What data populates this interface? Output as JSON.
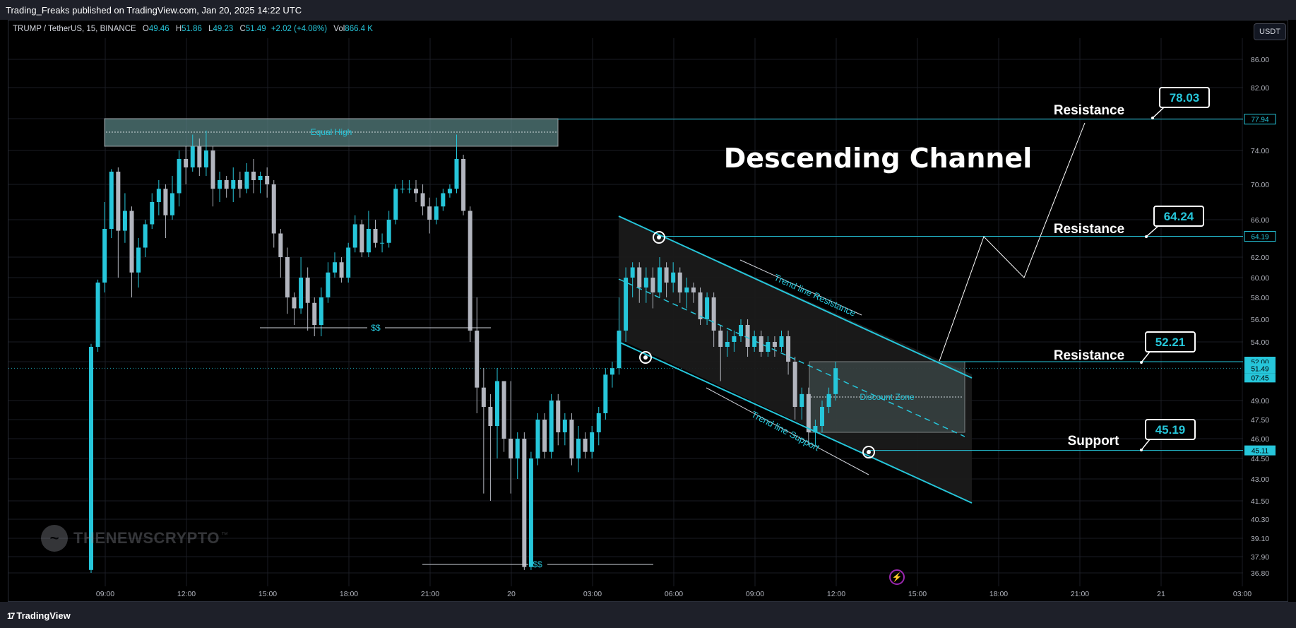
{
  "header": {
    "published": "Trading_Freaks published on TradingView.com, Jan 20, 2025 14:22 UTC"
  },
  "legend": {
    "symbol": "TRUMP / TetherUS, 15, BINANCE",
    "open_label": "O",
    "open": "49.46",
    "high_label": "H",
    "high": "51.86",
    "low_label": "L",
    "low": "49.23",
    "close_label": "C",
    "close": "51.49",
    "change": "+2.02 (+4.08%)",
    "vol_label": "Vol",
    "vol": "866.4 K"
  },
  "currency_button": "USDT",
  "footer": {
    "brand": "TradingView"
  },
  "watermark": {
    "text": "THENEWSCRYPTO",
    "tm": "™"
  },
  "colors": {
    "bull": "#26c6da",
    "bear": "#b2b5be",
    "line": "#26c6da",
    "grid": "#1a1d24"
  },
  "chart_data": {
    "type": "candlestick",
    "title": "Descending Channel",
    "ylim": [
      36.0,
      88.0
    ],
    "y_ticks": [
      "86.00",
      "82.00",
      "78.00",
      "74.00",
      "70.00",
      "66.00",
      "62.00",
      "60.00",
      "58.00",
      "56.00",
      "54.00",
      "52.00",
      "49.00",
      "47.50",
      "46.00",
      "44.50",
      "43.00",
      "41.50",
      "40.30",
      "39.10",
      "37.90",
      "36.80"
    ],
    "x_ticks": [
      "09:00",
      "12:00",
      "15:00",
      "18:00",
      "21:00",
      "20",
      "03:00",
      "06:00",
      "09:00",
      "12:00",
      "15:00",
      "18:00",
      "21:00",
      "21",
      "03:00"
    ],
    "price_labels": [
      {
        "value": 77.94,
        "text": "77.94",
        "style": "outline"
      },
      {
        "value": 64.19,
        "text": "64.19",
        "style": "outline"
      },
      {
        "value": 52.0,
        "text": "52.00",
        "style": "fill"
      },
      {
        "value": 51.49,
        "text": "51.49",
        "style": "fill"
      },
      {
        "value": 45.11,
        "text": "45.11",
        "style": "fill"
      }
    ],
    "countdown": "07:45",
    "levels": [
      {
        "label": "Resistance",
        "callout": "78.03",
        "value": 77.94
      },
      {
        "label": "Resistance",
        "callout": "64.24",
        "value": 64.19
      },
      {
        "label": "Resistance",
        "callout": "52.21",
        "value": 52.0
      },
      {
        "label": "Support",
        "callout": "45.19",
        "value": 45.11
      }
    ],
    "annotations": {
      "equal_high": "Equal High",
      "liquidity_1": "$$",
      "liquidity_2": "$$",
      "trend_resistance": "Trend line Resistance",
      "trend_support": "Trend line Support",
      "discount_zone": "Discount Zone"
    },
    "candles": [
      [
        37.0,
        53.5,
        36.8,
        53.8
      ],
      [
        53.5,
        59.5,
        53.0,
        59.8
      ],
      [
        59.5,
        65.0,
        58.5,
        68.0
      ],
      [
        65.0,
        71.5,
        64.0,
        71.8
      ],
      [
        71.5,
        64.8,
        60.0,
        72.0
      ],
      [
        64.8,
        67.0,
        63.5,
        69.0
      ],
      [
        67.0,
        60.5,
        58.0,
        67.5
      ],
      [
        60.5,
        63.0,
        59.0,
        64.0
      ],
      [
        63.0,
        65.5,
        62.0,
        66.0
      ],
      [
        65.5,
        68.0,
        65.0,
        69.0
      ],
      [
        68.0,
        69.5,
        66.5,
        70.5
      ],
      [
        69.5,
        66.5,
        64.0,
        70.0
      ],
      [
        66.5,
        69.0,
        66.0,
        71.0
      ],
      [
        69.0,
        73.0,
        67.5,
        74.0
      ],
      [
        73.0,
        72.0,
        70.0,
        74.5
      ],
      [
        72.0,
        74.5,
        71.5,
        76.0
      ],
      [
        74.5,
        72.0,
        71.0,
        75.5
      ],
      [
        72.0,
        74.0,
        71.0,
        76.5
      ],
      [
        74.0,
        69.5,
        67.5,
        74.5
      ],
      [
        69.5,
        70.5,
        68.0,
        71.5
      ],
      [
        70.5,
        69.5,
        68.5,
        71.0
      ],
      [
        69.5,
        70.5,
        68.0,
        72.0
      ],
      [
        70.5,
        69.5,
        68.5,
        71.5
      ],
      [
        69.5,
        71.5,
        69.0,
        72.5
      ],
      [
        71.5,
        70.5,
        69.0,
        73.0
      ],
      [
        70.5,
        71.0,
        69.0,
        71.5
      ],
      [
        71.0,
        70.0,
        68.5,
        72.0
      ],
      [
        70.0,
        64.5,
        63.0,
        70.5
      ],
      [
        64.5,
        62.0,
        60.0,
        65.0
      ],
      [
        62.0,
        58.0,
        56.5,
        63.0
      ],
      [
        58.0,
        57.0,
        55.5,
        58.5
      ],
      [
        57.0,
        60.0,
        56.5,
        62.0
      ],
      [
        60.0,
        57.5,
        55.0,
        61.0
      ],
      [
        57.5,
        55.5,
        54.5,
        58.0
      ],
      [
        55.5,
        58.0,
        54.5,
        59.0
      ],
      [
        58.0,
        60.5,
        57.5,
        61.5
      ],
      [
        60.5,
        61.5,
        60.0,
        62.5
      ],
      [
        61.5,
        60.0,
        59.5,
        62.0
      ],
      [
        60.0,
        63.0,
        59.5,
        63.5
      ],
      [
        63.0,
        65.5,
        62.5,
        66.5
      ],
      [
        65.5,
        62.5,
        62.0,
        66.0
      ],
      [
        62.5,
        65.0,
        62.0,
        67.0
      ],
      [
        65.0,
        63.5,
        63.0,
        66.0
      ],
      [
        63.5,
        63.5,
        62.5,
        64.5
      ],
      [
        63.5,
        66.0,
        63.0,
        67.0
      ],
      [
        66.0,
        69.5,
        65.5,
        70.0
      ],
      [
        69.5,
        69.5,
        69.0,
        70.5
      ],
      [
        69.5,
        69.5,
        69.0,
        70.5
      ],
      [
        69.5,
        69.0,
        68.0,
        70.5
      ],
      [
        69.0,
        67.5,
        66.5,
        70.0
      ],
      [
        67.5,
        66.0,
        64.5,
        68.5
      ],
      [
        66.0,
        67.5,
        65.5,
        68.5
      ],
      [
        67.5,
        69.0,
        67.0,
        69.5
      ],
      [
        69.0,
        69.5,
        68.5,
        70.0
      ],
      [
        69.5,
        73.0,
        69.0,
        76.0
      ],
      [
        73.0,
        67.0,
        66.5,
        73.5
      ],
      [
        67.0,
        55.0,
        54.0,
        67.5
      ],
      [
        55.0,
        50.0,
        48.0,
        58.0
      ],
      [
        50.0,
        48.5,
        42.0,
        51.5
      ],
      [
        48.5,
        47.0,
        41.5,
        49.5
      ],
      [
        47.0,
        50.5,
        44.5,
        51.5
      ],
      [
        50.5,
        46.0,
        45.0,
        50.5
      ],
      [
        46.0,
        44.5,
        42.0,
        50.5
      ],
      [
        44.5,
        46.0,
        43.0,
        46.5
      ],
      [
        46.0,
        37.2,
        37.0,
        46.5
      ],
      [
        37.2,
        44.5,
        37.0,
        45.0
      ],
      [
        44.5,
        47.5,
        44.0,
        48.0
      ],
      [
        47.5,
        45.0,
        44.5,
        48.0
      ],
      [
        45.0,
        49.0,
        44.5,
        49.5
      ],
      [
        49.0,
        46.5,
        45.5,
        49.5
      ],
      [
        46.5,
        47.5,
        45.5,
        48.0
      ],
      [
        47.5,
        44.5,
        44.0,
        48.0
      ],
      [
        44.5,
        46.0,
        43.5,
        47.0
      ],
      [
        46.0,
        45.0,
        44.5,
        46.5
      ],
      [
        45.0,
        46.5,
        44.5,
        47.0
      ],
      [
        46.5,
        48.0,
        45.5,
        48.5
      ],
      [
        48.0,
        51.0,
        47.5,
        51.5
      ],
      [
        51.0,
        51.5,
        50.0,
        52.0
      ],
      [
        51.5,
        55.0,
        51.0,
        58.0
      ],
      [
        55.0,
        60.0,
        54.0,
        61.0
      ],
      [
        60.0,
        61.0,
        58.0,
        61.5
      ],
      [
        61.0,
        59.0,
        57.5,
        61.5
      ],
      [
        59.0,
        60.0,
        57.5,
        61.0
      ],
      [
        60.0,
        58.5,
        57.0,
        61.0
      ],
      [
        58.5,
        61.0,
        58.0,
        62.0
      ],
      [
        61.0,
        59.5,
        58.0,
        61.5
      ],
      [
        59.5,
        60.5,
        58.5,
        61.5
      ],
      [
        60.5,
        58.5,
        57.5,
        61.0
      ],
      [
        58.5,
        59.0,
        57.0,
        60.0
      ],
      [
        59.0,
        58.5,
        57.5,
        59.5
      ],
      [
        58.5,
        56.0,
        55.5,
        59.0
      ],
      [
        56.0,
        58.0,
        55.5,
        58.5
      ],
      [
        58.0,
        55.0,
        53.5,
        58.5
      ],
      [
        55.0,
        53.5,
        50.5,
        55.5
      ],
      [
        53.5,
        54.0,
        52.5,
        55.0
      ],
      [
        54.0,
        54.5,
        53.0,
        55.0
      ],
      [
        54.5,
        55.5,
        54.0,
        56.0
      ],
      [
        55.5,
        53.5,
        52.5,
        56.0
      ],
      [
        53.5,
        54.5,
        53.0,
        55.0
      ],
      [
        54.5,
        53.0,
        52.5,
        55.0
      ],
      [
        53.0,
        54.0,
        52.5,
        54.5
      ],
      [
        54.0,
        53.5,
        52.5,
        54.5
      ],
      [
        53.5,
        54.5,
        53.0,
        55.0
      ],
      [
        54.5,
        52.0,
        51.0,
        55.0
      ],
      [
        52.0,
        48.5,
        47.5,
        52.5
      ],
      [
        48.5,
        49.5,
        47.5,
        50.0
      ],
      [
        49.5,
        46.5,
        45.5,
        50.0
      ],
      [
        46.5,
        47.0,
        45.5,
        47.5
      ],
      [
        47.0,
        48.5,
        46.5,
        49.0
      ],
      [
        48.5,
        49.5,
        48.0,
        50.0
      ],
      [
        49.5,
        51.5,
        49.0,
        52.0
      ]
    ]
  }
}
